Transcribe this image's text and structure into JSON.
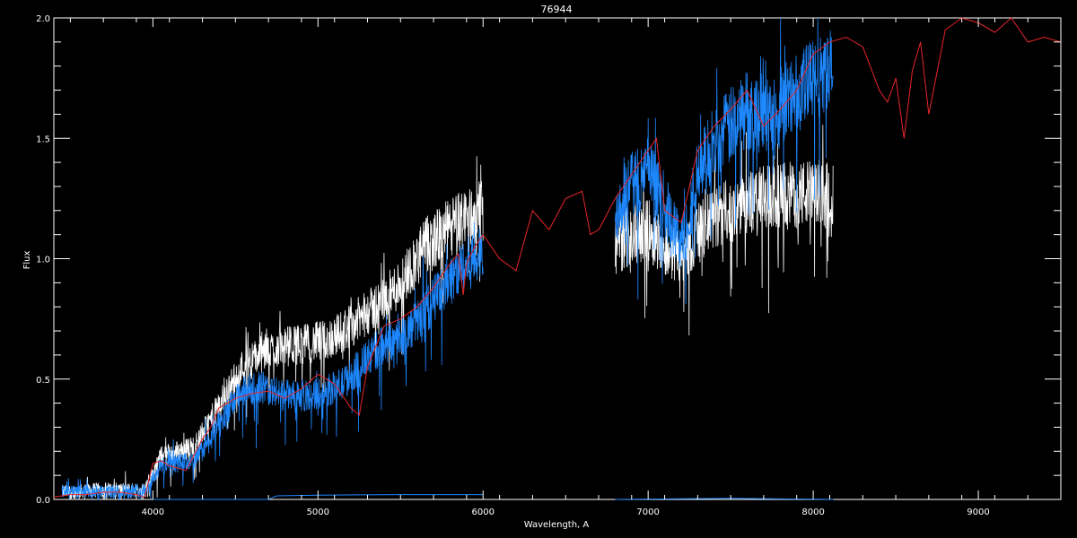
{
  "chart_data": {
    "type": "line",
    "title": "76944",
    "xlabel": "Wavelength, A",
    "ylabel": "Flux",
    "xlim": [
      3400,
      9500
    ],
    "ylim": [
      0.0,
      2.0
    ],
    "xticks": [
      4000,
      5000,
      6000,
      7000,
      8000,
      9000
    ],
    "yticks": [
      0.0,
      0.5,
      1.0,
      1.5,
      2.0
    ],
    "ytick_labels": [
      "0.0",
      "0.5",
      "1.0",
      "1.5",
      "2.0"
    ],
    "grid": false,
    "background": "#000000",
    "series": [
      {
        "color": "#ffffff",
        "style": "noisy",
        "segments": [
          {
            "x": [
              3450,
              3700,
              3950,
              4050,
              4250,
              4350,
              4450,
              4550,
              4650,
              4750,
              4850,
              4950,
              5050,
              5150,
              5250,
              5350,
              5450,
              5550,
              5650,
              5750,
              5850,
              5950,
              6000
            ],
            "y": [
              0.03,
              0.04,
              0.04,
              0.18,
              0.22,
              0.33,
              0.45,
              0.56,
              0.6,
              0.63,
              0.64,
              0.65,
              0.66,
              0.7,
              0.75,
              0.8,
              0.86,
              0.95,
              1.05,
              1.1,
              1.15,
              1.18,
              1.2
            ]
          },
          {
            "x": [
              6800,
              6900,
              7000,
              7100,
              7200,
              7300,
              7400,
              7500,
              7600,
              7700,
              7800,
              7900,
              8000,
              8120
            ],
            "y": [
              1.05,
              1.1,
              1.12,
              1.05,
              1.0,
              1.1,
              1.17,
              1.2,
              1.23,
              1.25,
              1.26,
              1.27,
              1.27,
              1.28
            ]
          }
        ]
      },
      {
        "color": "#1e88ff",
        "style": "noisy",
        "segments": [
          {
            "x": [
              3450,
              3700,
              3950,
              4050,
              4250,
              4350,
              4450,
              4550,
              4650,
              4750,
              4850,
              4950,
              5050,
              5150,
              5250,
              5350,
              5450,
              5550,
              5650,
              5750,
              5850,
              5950,
              6000
            ],
            "y": [
              0.03,
              0.03,
              0.04,
              0.14,
              0.16,
              0.25,
              0.37,
              0.45,
              0.47,
              0.44,
              0.43,
              0.43,
              0.45,
              0.48,
              0.55,
              0.62,
              0.66,
              0.7,
              0.78,
              0.88,
              0.95,
              1.0,
              1.02
            ]
          },
          {
            "x": [
              6800,
              6900,
              7000,
              7100,
              7200,
              7300,
              7400,
              7500,
              7600,
              7700,
              7800,
              7900,
              8000,
              8120
            ],
            "y": [
              1.2,
              1.3,
              1.36,
              1.22,
              1.05,
              1.35,
              1.48,
              1.55,
              1.62,
              1.6,
              1.63,
              1.68,
              1.74,
              1.78
            ]
          }
        ]
      },
      {
        "color": "#1e88ff",
        "style": "line",
        "segments": [
          {
            "x": [
              4000,
              4700,
              4750,
              5000,
              5500,
              6000
            ],
            "y": [
              0.0,
              0.0,
              0.015,
              0.018,
              0.02,
              0.02
            ]
          },
          {
            "x": [
              6800,
              7500,
              8120
            ],
            "y": [
              0.0,
              0.005,
              0.0
            ]
          }
        ]
      },
      {
        "color": "#e8252a",
        "style": "line",
        "segments": [
          {
            "x": [
              3400,
              3500,
              3600,
              3700,
              3800,
              3900,
              3950,
              4000,
              4050,
              4100,
              4200,
              4300,
              4350,
              4400,
              4500,
              4600,
              4700,
              4800,
              4900,
              5000,
              5100,
              5200,
              5250,
              5300,
              5400,
              5500,
              5600,
              5700,
              5800,
              5850,
              5880,
              5900,
              5950,
              6000,
              6100,
              6200,
              6300,
              6400,
              6500,
              6600,
              6650,
              6700,
              6800,
              6900,
              7000,
              7050,
              7100,
              7200,
              7300,
              7400,
              7500,
              7600,
              7700,
              7800,
              7900,
              8000,
              8100,
              8200,
              8300,
              8400,
              8450,
              8500,
              8550,
              8600,
              8650,
              8700,
              8800,
              8900,
              9000,
              9100,
              9200,
              9300,
              9400,
              9500
            ],
            "y": [
              0.01,
              0.02,
              0.02,
              0.03,
              0.03,
              0.02,
              0.01,
              0.15,
              0.16,
              0.14,
              0.12,
              0.25,
              0.3,
              0.38,
              0.42,
              0.44,
              0.45,
              0.42,
              0.46,
              0.52,
              0.48,
              0.38,
              0.35,
              0.55,
              0.72,
              0.75,
              0.8,
              0.88,
              0.98,
              1.02,
              0.85,
              0.98,
              1.05,
              1.1,
              1.0,
              0.95,
              1.2,
              1.12,
              1.25,
              1.28,
              1.1,
              1.12,
              1.25,
              1.35,
              1.45,
              1.5,
              1.2,
              1.15,
              1.45,
              1.55,
              1.62,
              1.7,
              1.55,
              1.62,
              1.7,
              1.85,
              1.9,
              1.92,
              1.88,
              1.7,
              1.65,
              1.75,
              1.5,
              1.78,
              1.9,
              1.6,
              1.95,
              2.0,
              1.98,
              1.94,
              2.0,
              1.9,
              1.92,
              1.9
            ]
          }
        ]
      }
    ]
  }
}
